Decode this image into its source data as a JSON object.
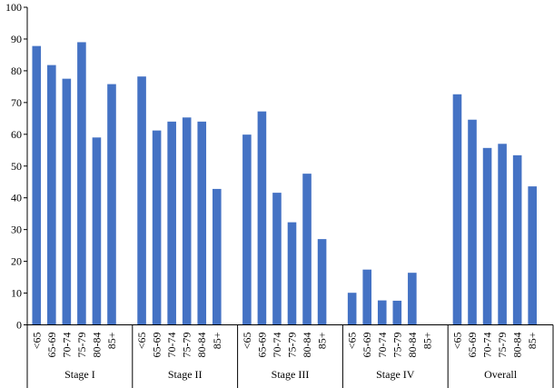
{
  "chart_data": {
    "type": "bar",
    "title": "",
    "xlabel": "",
    "ylabel": "",
    "ylim": [
      0,
      100
    ],
    "yticks": [
      0,
      10,
      20,
      30,
      40,
      50,
      60,
      70,
      80,
      90,
      100
    ],
    "grid": false,
    "legend": "none",
    "bar_color": "#4472C4",
    "groups": [
      {
        "label": "Stage I",
        "categories": [
          "<65",
          "65-69",
          "70-74",
          "75-79",
          "80-84",
          "85+"
        ],
        "values": [
          87.8,
          81.8,
          77.5,
          89,
          59,
          75.8
        ]
      },
      {
        "label": "Stage II",
        "categories": [
          "<65",
          "65-69",
          "70-74",
          "75-79",
          "80-84",
          "85+"
        ],
        "values": [
          78.2,
          61.2,
          64,
          65.3,
          64,
          42.8
        ]
      },
      {
        "label": "Stage III",
        "categories": [
          "<65",
          "65-69",
          "70-74",
          "75-79",
          "80-84",
          "85+"
        ],
        "values": [
          59.9,
          67.2,
          41.6,
          32.3,
          47.6,
          27
        ]
      },
      {
        "label": "Stage IV",
        "categories": [
          "<65",
          "65-69",
          "70-74",
          "75-79",
          "80-84",
          "85+"
        ],
        "values": [
          10.1,
          17.4,
          7.7,
          7.6,
          16.4,
          0
        ]
      },
      {
        "label": "Overall",
        "categories": [
          "<65",
          "65-69",
          "70-74",
          "75-79",
          "80-84",
          "85+"
        ],
        "values": [
          72.6,
          64.6,
          55.7,
          57,
          53.4,
          43.6
        ]
      }
    ]
  }
}
